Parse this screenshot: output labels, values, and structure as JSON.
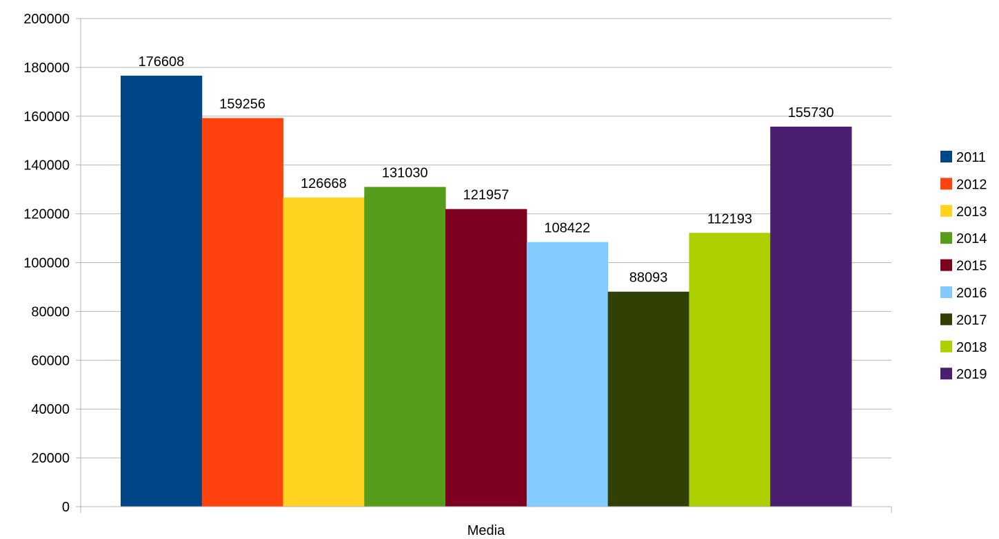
{
  "chart_data": {
    "type": "bar",
    "categories": [
      "Media"
    ],
    "series": [
      {
        "name": "2011",
        "values": [
          176608
        ],
        "color": "#004586"
      },
      {
        "name": "2012",
        "values": [
          159256
        ],
        "color": "#ff420e"
      },
      {
        "name": "2013",
        "values": [
          126668
        ],
        "color": "#ffd320"
      },
      {
        "name": "2014",
        "values": [
          131030
        ],
        "color": "#579d1c"
      },
      {
        "name": "2015",
        "values": [
          121957
        ],
        "color": "#7e0021"
      },
      {
        "name": "2016",
        "values": [
          108422
        ],
        "color": "#83caff"
      },
      {
        "name": "2017",
        "values": [
          88093
        ],
        "color": "#314004"
      },
      {
        "name": "2018",
        "values": [
          112193
        ],
        "color": "#aecf00"
      },
      {
        "name": "2019",
        "values": [
          155730
        ],
        "color": "#4b1f6f"
      }
    ],
    "y_ticks": [
      "0",
      "20000",
      "40000",
      "60000",
      "80000",
      "100000",
      "120000",
      "140000",
      "160000",
      "180000",
      "200000"
    ],
    "ylim": [
      0,
      200000
    ],
    "grid": true,
    "legend_position": "right",
    "data_labels": true
  }
}
